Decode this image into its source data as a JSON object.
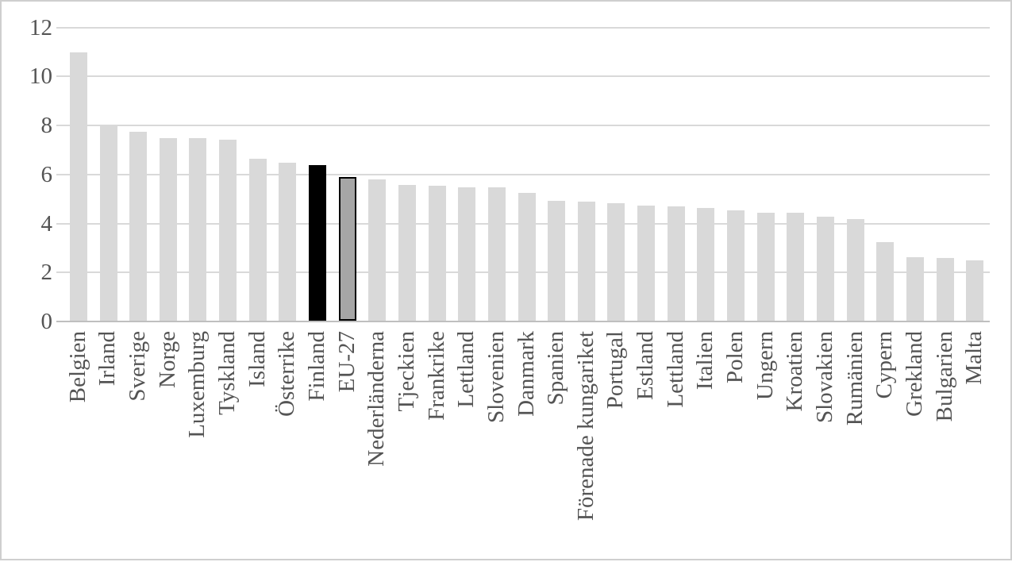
{
  "chart_data": {
    "type": "bar",
    "title": "",
    "xlabel": "",
    "ylabel": "",
    "ylim": [
      0,
      12
    ],
    "yticks": [
      0,
      2,
      4,
      6,
      8,
      10,
      12
    ],
    "grid": "horizontal",
    "legend": "none",
    "categories": [
      "Belgien",
      "Irland",
      "Sverige",
      "Norge",
      "Luxemburg",
      "Tyskland",
      "Island",
      "Österrike",
      "Finland",
      "EU-27",
      "Nederländerna",
      "Tjeckien",
      "Frankrike",
      "Lettland",
      "Slovenien",
      "Danmark",
      "Spanien",
      "Förenade kungariket",
      "Portugal",
      "Estland",
      "Lettland",
      "Italien",
      "Polen",
      "Ungern",
      "Kroatien",
      "Slovakien",
      "Rumänien",
      "Cypern",
      "Grekland",
      "Bulgarien",
      "Malta"
    ],
    "values": [
      10.95,
      8.0,
      7.7,
      7.45,
      7.45,
      7.4,
      6.6,
      6.45,
      6.35,
      5.85,
      5.75,
      5.55,
      5.5,
      5.45,
      5.45,
      5.2,
      4.9,
      4.85,
      4.8,
      4.7,
      4.65,
      4.6,
      4.5,
      4.4,
      4.4,
      4.25,
      4.15,
      3.2,
      2.6,
      2.55,
      2.45
    ],
    "highlighted": {
      "black_bar_index": 8,
      "black_bar_label": "Finland",
      "outlined_bar_index": 9,
      "outlined_bar_label": "EU-27"
    }
  },
  "colors": {
    "background": "#ffffff",
    "frame_border": "#cfcfcf",
    "bar_default": "#d9d9d9",
    "bar_black": "#000000",
    "bar_outlined_fill": "#a6a6a6",
    "bar_outlined_border": "#000000",
    "gridline": "#d9d9d9",
    "axis_line": "#bfbfbf",
    "text": "#545454"
  }
}
